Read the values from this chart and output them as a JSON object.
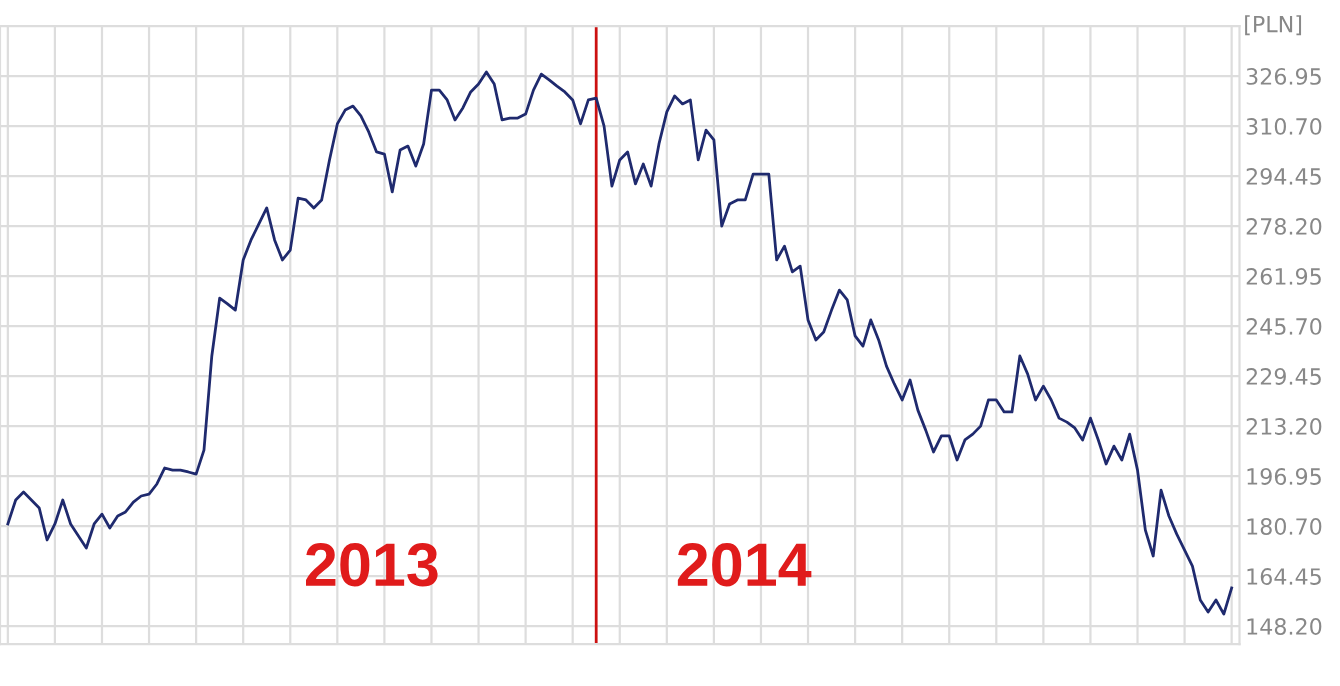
{
  "chart_data": {
    "type": "line",
    "ylabel": "[PLN]",
    "categories": [
      null,
      null,
      null,
      null,
      null,
      null,
      null,
      null,
      null,
      null,
      null,
      null,
      null,
      null,
      null,
      null,
      null,
      null,
      null,
      null,
      null,
      null,
      null,
      null,
      null,
      null,
      null,
      null,
      null,
      null,
      null,
      null,
      null,
      null,
      null,
      null,
      null,
      null,
      null,
      null,
      null,
      null,
      null,
      null,
      null,
      null,
      null,
      null,
      null,
      null,
      null,
      null,
      null,
      null,
      null,
      null,
      null,
      null,
      null,
      null,
      null,
      null,
      null,
      null,
      null,
      null,
      null,
      null,
      null,
      null,
      null,
      null,
      null,
      null,
      null,
      null,
      null,
      null,
      null,
      null,
      null,
      null,
      null,
      null,
      null,
      null,
      null,
      null,
      null,
      null,
      null,
      null,
      null,
      null,
      null,
      null,
      null,
      null,
      null,
      null,
      null,
      null,
      null,
      null,
      null,
      null,
      null,
      null,
      null,
      null,
      null,
      null,
      null,
      null,
      null,
      null,
      null,
      null,
      null,
      null,
      null,
      null,
      null,
      null,
      null,
      null,
      null,
      null,
      null,
      null,
      null,
      null,
      null,
      null,
      null,
      null,
      null,
      null,
      null,
      null,
      null,
      null,
      null,
      null,
      null,
      null,
      null,
      null,
      null,
      null,
      null,
      null,
      null,
      null,
      null,
      null,
      null
    ],
    "series": [
      {
        "color": "#1f2a6e",
        "values": [
          181.4,
          189.2,
          191.8,
          189.2,
          186.6,
          176.2,
          181.4,
          189.2,
          181.4,
          177.5,
          173.6,
          181.4,
          184.6,
          180.1,
          184.0,
          185.3,
          188.5,
          190.5,
          191.1,
          194.4,
          199.6,
          198.9,
          198.9,
          198.3,
          197.6,
          205.4,
          236.0,
          254.8,
          252.9,
          250.9,
          267.2,
          273.7,
          278.9,
          284.1,
          273.7,
          267.2,
          270.4,
          287.3,
          286.7,
          284.1,
          286.7,
          299.7,
          311.4,
          315.9,
          317.2,
          314.0,
          308.8,
          302.3,
          301.6,
          289.3,
          302.9,
          304.2,
          297.7,
          304.9,
          322.4,
          322.4,
          319.2,
          312.7,
          316.6,
          321.8,
          324.4,
          328.3,
          324.4,
          312.7,
          313.3,
          313.3,
          314.6,
          322.4,
          327.6,
          325.7,
          323.7,
          321.8,
          319.2,
          311.4,
          319.2,
          319.8,
          310.7,
          291.2,
          299.7,
          302.3,
          291.9,
          298.4,
          291.2,
          304.9,
          315.3,
          320.5,
          317.9,
          319.2,
          299.7,
          309.4,
          306.2,
          278.2,
          285.4,
          286.7,
          286.7,
          295.1,
          295.1,
          295.1,
          267.2,
          271.7,
          263.3,
          265.2,
          247.7,
          241.2,
          243.8,
          250.9,
          257.4,
          254.2,
          242.5,
          239.2,
          247.7,
          241.2,
          232.7,
          226.9,
          221.7,
          228.2,
          218.4,
          211.9,
          204.8,
          210.0,
          210.0,
          202.2,
          208.7,
          210.6,
          213.2,
          221.7,
          221.7,
          217.8,
          217.8,
          236.0,
          230.1,
          221.7,
          226.2,
          221.7,
          215.8,
          214.5,
          212.6,
          208.7,
          215.8,
          208.7,
          200.9,
          206.7,
          202.2,
          210.6,
          198.9,
          179.4,
          171.0,
          192.4,
          184.0,
          178.1,
          172.9,
          167.7,
          156.7,
          152.8,
          156.7,
          152.1,
          160.6
        ]
      }
    ],
    "ylim": [
      142.35,
      343.2
    ],
    "yticks": [
      {
        "value": 148.2,
        "label": "148.20"
      },
      {
        "value": 164.45,
        "label": "164.45"
      },
      {
        "value": 180.7,
        "label": "180.70"
      },
      {
        "value": 196.95,
        "label": "196.95"
      },
      {
        "value": 213.2,
        "label": "213.20"
      },
      {
        "value": 229.45,
        "label": "229.45"
      },
      {
        "value": 245.7,
        "label": "245.70"
      },
      {
        "value": 261.95,
        "label": "261.95"
      },
      {
        "value": 278.2,
        "label": "278.20"
      },
      {
        "value": 294.45,
        "label": "294.45"
      },
      {
        "value": 310.7,
        "label": "310.70"
      },
      {
        "value": 326.95,
        "label": "326.95"
      }
    ],
    "annotations": [
      "2013",
      "2014"
    ],
    "grid": true,
    "tick_labels": "y",
    "marker": "none",
    "line_style": "solid",
    "legend": false
  }
}
